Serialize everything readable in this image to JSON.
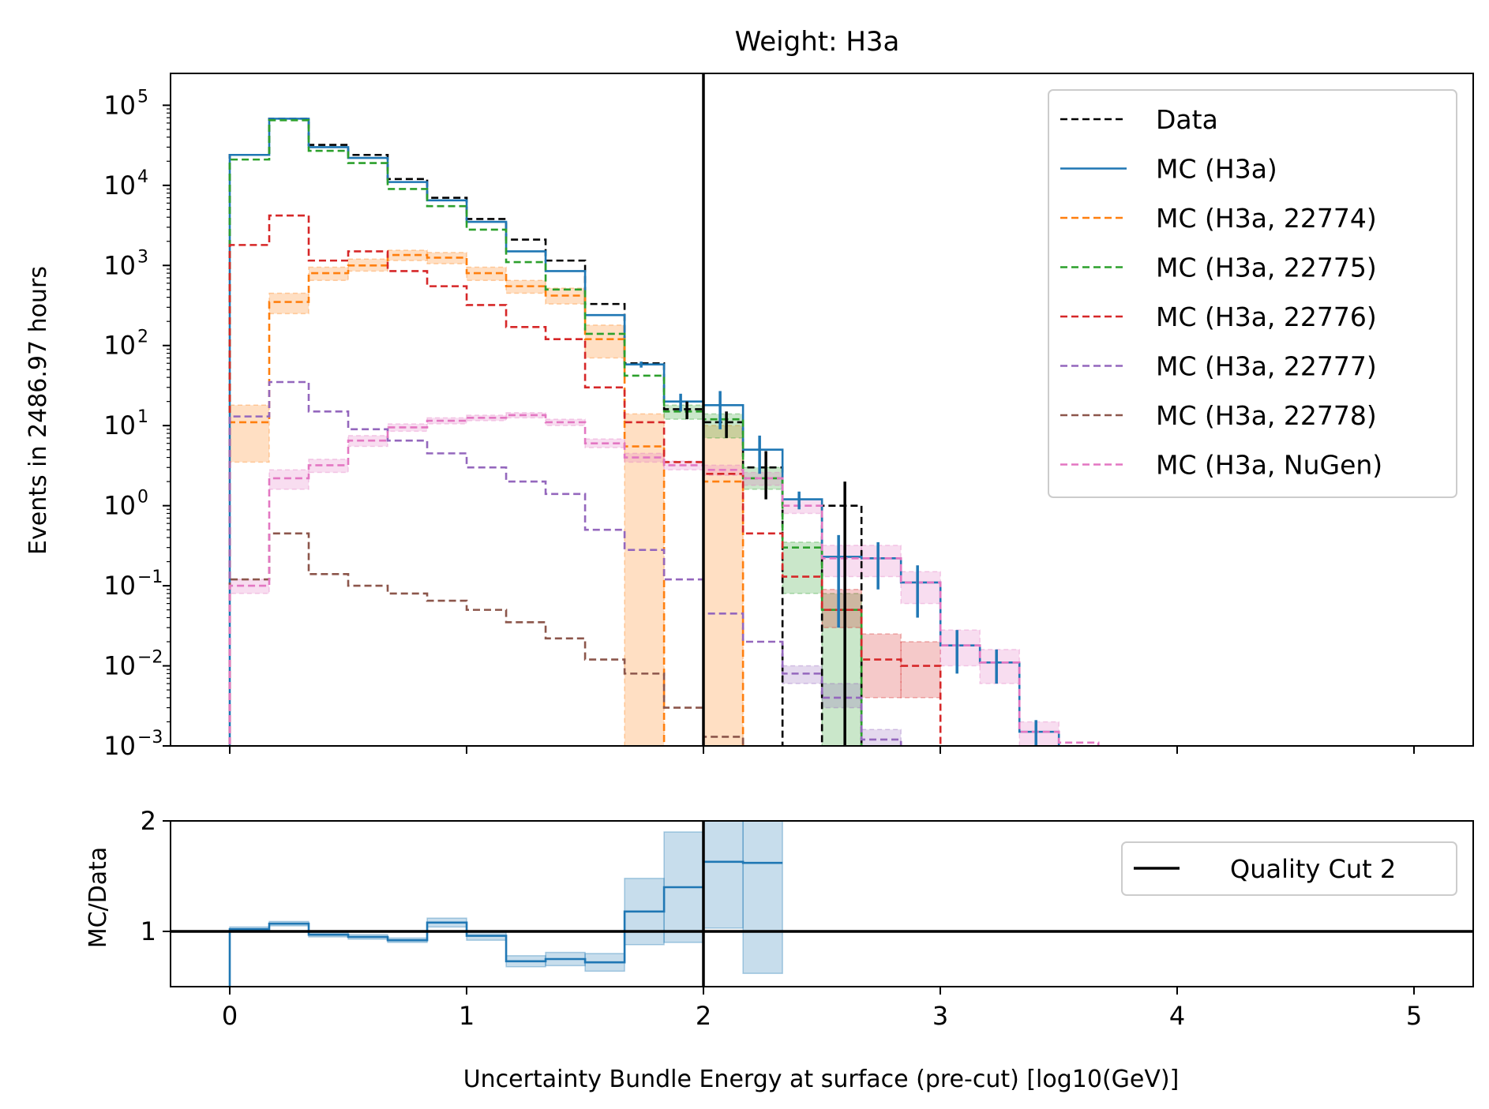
{
  "chart_data": {
    "type": "histogram",
    "title": "Weight: H3a",
    "main_panel": {
      "ylabel": "Events in 2486.97 hours",
      "yscale": "log",
      "ylim": [
        0.001,
        250000
      ],
      "yticks": [
        {
          "base": "10",
          "exp": "5",
          "v": 100000
        },
        {
          "base": "10",
          "exp": "4",
          "v": 10000
        },
        {
          "base": "10",
          "exp": "3",
          "v": 1000
        },
        {
          "base": "10",
          "exp": "2",
          "v": 100
        },
        {
          "base": "10",
          "exp": "1",
          "v": 10
        },
        {
          "base": "10",
          "exp": "0",
          "v": 1
        },
        {
          "base": "10",
          "exp": "−1",
          "v": 0.1
        },
        {
          "base": "10",
          "exp": "−2",
          "v": 0.01
        },
        {
          "base": "10",
          "exp": "−3",
          "v": 0.001
        }
      ],
      "legend_position": "top-right"
    },
    "ratio_panel": {
      "ylabel": "MC/Data",
      "ylim": [
        0.5,
        2
      ],
      "yticks": [
        "1",
        "2"
      ],
      "reference_line": 1,
      "legend_position": "right",
      "series": {
        "x_start": 0,
        "bin_width": 0.1667,
        "values": [
          1.02,
          1.07,
          0.97,
          0.95,
          0.92,
          1.08,
          0.96,
          0.73,
          0.75,
          0.72,
          1.18,
          1.4,
          1.63,
          1.62
        ],
        "err": [
          0.02,
          0.02,
          0.02,
          0.02,
          0.02,
          0.04,
          0.04,
          0.05,
          0.06,
          0.08,
          0.3,
          0.5,
          0.6,
          1.0
        ]
      }
    },
    "xlabel": "Uncertainty Bundle Energy at surface (pre-cut) [log10(GeV)]",
    "xlim": [
      -0.25,
      5.25
    ],
    "xticks": [
      "0",
      "1",
      "2",
      "3",
      "4",
      "5"
    ],
    "x_start": 0,
    "bin_width": 0.1667,
    "vline": {
      "x": 2.0,
      "label": "Quality Cut 2"
    },
    "series": [
      {
        "name": "Data",
        "color": "#000000",
        "style": "dashed",
        "values": [
          24000,
          68000,
          32000,
          24000,
          12000,
          7000,
          3800,
          2100,
          1150,
          330,
          60,
          16,
          11,
          3,
          0,
          1
        ],
        "err_bars": [
          null,
          null,
          null,
          null,
          null,
          null,
          null,
          null,
          null,
          null,
          null,
          4,
          4,
          1.8,
          null,
          1
        ]
      },
      {
        "name": "MC (H3a)",
        "color": "#1f77b4",
        "style": "solid",
        "values": [
          24000,
          68000,
          30000,
          22000,
          11000,
          6500,
          3500,
          1500,
          850,
          240,
          58,
          20,
          18,
          5,
          1.2,
          0.23,
          0.22,
          0.11,
          0.018,
          0.011,
          0.0015
        ],
        "err_bars": [
          null,
          null,
          null,
          null,
          null,
          null,
          null,
          null,
          null,
          null,
          5,
          5,
          9,
          2.5,
          0.3,
          0.2,
          0.13,
          0.07,
          0.01,
          0.005,
          0.0006
        ]
      },
      {
        "name": "MC (H3a, 22774)",
        "color": "#ff7f0e",
        "style": "dashed",
        "values": [
          11,
          350,
          800,
          1000,
          1350,
          1250,
          800,
          550,
          420,
          120,
          5.5,
          0,
          2.0
        ],
        "band": [
          [
            3.5,
            18
          ],
          [
            250,
            450
          ],
          [
            650,
            950
          ],
          [
            850,
            1200
          ],
          [
            1150,
            1550
          ],
          [
            1050,
            1450
          ],
          [
            650,
            950
          ],
          [
            450,
            650
          ],
          [
            330,
            520
          ],
          [
            70,
            180
          ],
          [
            0,
            14
          ],
          null,
          [
            0,
            10
          ]
        ]
      },
      {
        "name": "MC (H3a, 22775)",
        "color": "#2ca02c",
        "style": "dashed",
        "values": [
          21000,
          65000,
          27000,
          19000,
          9000,
          5500,
          2800,
          1100,
          500,
          140,
          42,
          15,
          12,
          2.2,
          0.3,
          0.05
        ],
        "band": [
          null,
          null,
          null,
          null,
          null,
          null,
          null,
          null,
          null,
          null,
          null,
          [
            12,
            18
          ],
          [
            7,
            14
          ],
          [
            1.6,
            3
          ],
          [
            0.08,
            0.35
          ],
          [
            0,
            0.08
          ]
        ]
      },
      {
        "name": "MC (H3a, 22776)",
        "color": "#d62728",
        "style": "dashed",
        "values": [
          1800,
          4200,
          1150,
          1500,
          850,
          550,
          320,
          170,
          120,
          30,
          11,
          3.5,
          2.5,
          0.45,
          0.13,
          0.05,
          0.012,
          0.01
        ],
        "band": [
          null,
          null,
          null,
          null,
          null,
          null,
          null,
          null,
          null,
          null,
          null,
          null,
          null,
          null,
          null,
          [
            0.03,
            0.09
          ],
          [
            0.004,
            0.025
          ],
          [
            0.004,
            0.02
          ]
        ]
      },
      {
        "name": "MC (H3a, 22777)",
        "color": "#9467bd",
        "style": "dashed",
        "values": [
          13,
          35,
          15,
          9,
          6.5,
          4.5,
          3.0,
          2.0,
          1.4,
          0.5,
          0.28,
          0.12,
          0.045,
          0.02,
          0.008,
          0.004,
          0.0012
        ],
        "band": [
          null,
          null,
          null,
          null,
          null,
          null,
          null,
          null,
          null,
          null,
          null,
          null,
          null,
          null,
          [
            0.006,
            0.01
          ],
          [
            0.003,
            0.006
          ],
          [
            0.0008,
            0.0016
          ]
        ]
      },
      {
        "name": "MC (H3a, 22778)",
        "color": "#8c564b",
        "style": "dashed",
        "values": [
          0.12,
          0.45,
          0.14,
          0.1,
          0.08,
          0.065,
          0.05,
          0.035,
          0.022,
          0.012,
          0.008,
          0.003,
          0.0013
        ]
      },
      {
        "name": "MC (H3a, NuGen)",
        "color": "#e377c2",
        "style": "dashed",
        "values": [
          0.1,
          2.2,
          3.2,
          6.5,
          9.5,
          11.5,
          12.5,
          13.5,
          11,
          6.0,
          4.0,
          3.2,
          2.8,
          2.2,
          1.0,
          0.22,
          0.22,
          0.11,
          0.018,
          0.011,
          0.0015,
          0.0011
        ],
        "band": [
          [
            0.08,
            0.12
          ],
          [
            1.6,
            2.8
          ],
          [
            2.6,
            3.8
          ],
          [
            5.5,
            7.5
          ],
          [
            8.5,
            10.5
          ],
          [
            10.5,
            12.5
          ],
          [
            11.5,
            13.5
          ],
          [
            12.5,
            14.5
          ],
          [
            10,
            12
          ],
          [
            5.3,
            6.8
          ],
          [
            3.5,
            4.5
          ],
          [
            2.8,
            3.6
          ],
          [
            2.4,
            3.2
          ],
          [
            1.8,
            2.6
          ],
          [
            0.8,
            1.2
          ],
          [
            0.13,
            0.32
          ],
          [
            0.13,
            0.32
          ],
          [
            0.06,
            0.15
          ],
          [
            0.01,
            0.028
          ],
          [
            0.006,
            0.016
          ],
          [
            0.001,
            0.002
          ],
          null
        ]
      }
    ]
  }
}
